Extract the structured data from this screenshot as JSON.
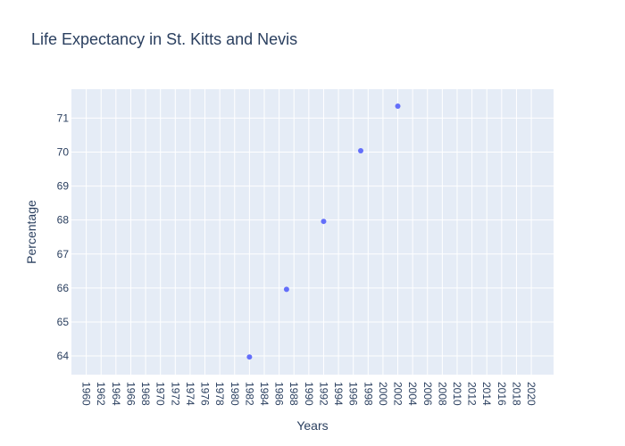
{
  "chart_data": {
    "type": "scatter",
    "title": "Life Expectancy in St. Kitts and Nevis",
    "xlabel": "Years",
    "ylabel": "Percentage",
    "xlim": [
      1958,
      2023
    ],
    "ylim": [
      63.45,
      71.85
    ],
    "x_ticks": [
      1960,
      1962,
      1964,
      1966,
      1968,
      1970,
      1972,
      1974,
      1976,
      1978,
      1980,
      1982,
      1984,
      1986,
      1988,
      1990,
      1992,
      1994,
      1996,
      1998,
      2000,
      2002,
      2004,
      2006,
      2008,
      2010,
      2012,
      2014,
      2016,
      2018,
      2020
    ],
    "y_ticks": [
      64,
      65,
      66,
      67,
      68,
      69,
      70,
      71
    ],
    "grid": true,
    "series": [
      {
        "x": [
          1982,
          1987,
          1992,
          1997,
          2002
        ],
        "y": [
          63.97,
          65.96,
          67.96,
          70.04,
          71.35
        ]
      }
    ],
    "colors": {
      "marker": "#636efa",
      "plot_bg": "#e5ecf6",
      "grid": "#ffffff",
      "text": "#2a3f5f"
    }
  }
}
